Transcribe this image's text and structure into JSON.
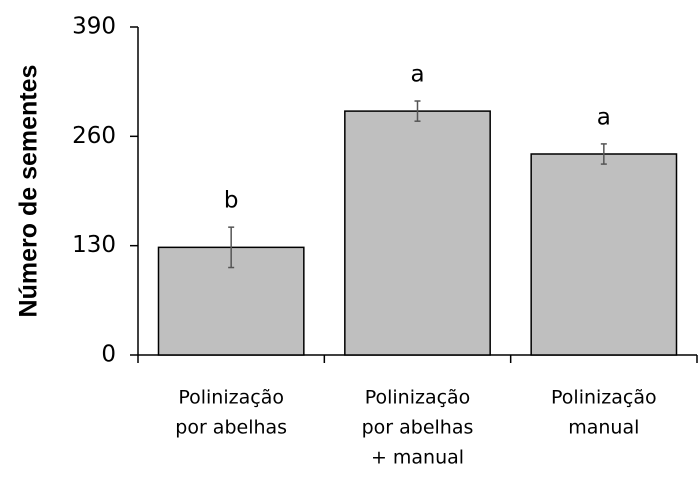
{
  "chart_data": {
    "type": "bar",
    "ylabel": "Número de sementes",
    "categories": [
      [
        "Polinização",
        "por abelhas"
      ],
      [
        "Polinização",
        "por abelhas",
        "+ manual"
      ],
      [
        "Polinização",
        "manual"
      ]
    ],
    "values": [
      128,
      290,
      239
    ],
    "errors": [
      24,
      12,
      12
    ],
    "annotations": [
      "b",
      "a",
      "a"
    ],
    "color": "#bfbfbf",
    "ylim": [
      0,
      390
    ],
    "yticks": [
      0,
      130,
      260,
      390
    ],
    "grid": false
  }
}
